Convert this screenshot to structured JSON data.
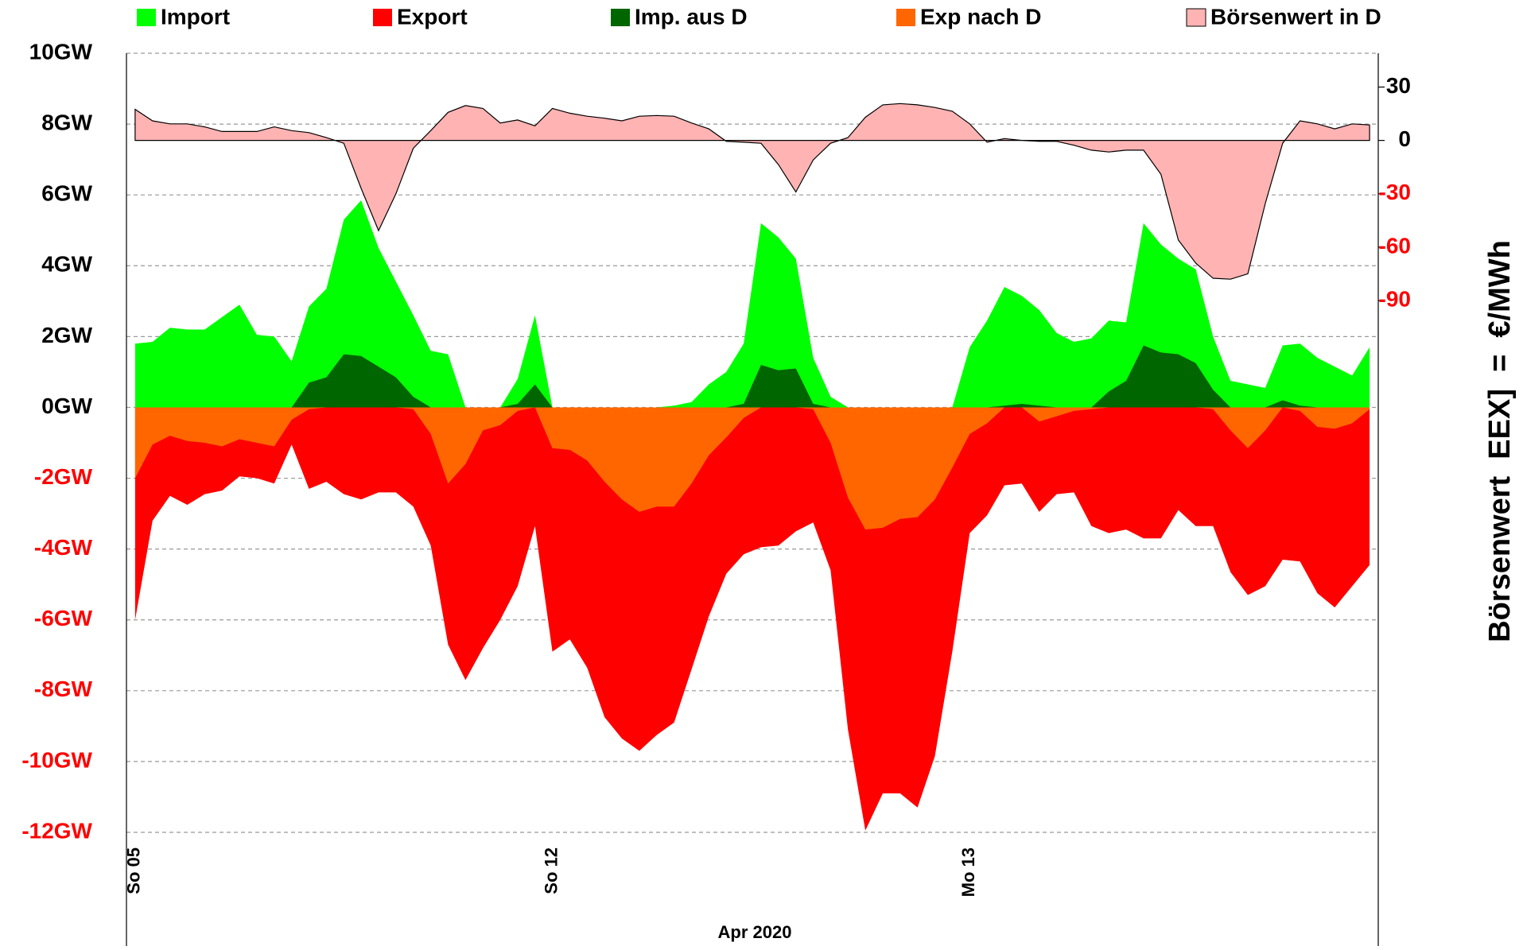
{
  "chart_data": {
    "type": "area",
    "xlabel": "Apr 2020",
    "y2label": "Börsenwert  EEX]  =  €/MWh",
    "categories": [
      "So 05",
      null,
      null,
      null,
      null,
      null,
      null,
      null,
      null,
      null,
      null,
      null,
      null,
      null,
      null,
      null,
      null,
      null,
      null,
      null,
      null,
      null,
      null,
      null,
      "So 12",
      null,
      null,
      null,
      null,
      null,
      null,
      null,
      null,
      null,
      null,
      null,
      null,
      null,
      null,
      null,
      null,
      null,
      null,
      null,
      null,
      null,
      null,
      null,
      "Mo 13",
      null,
      null,
      null,
      null,
      null,
      null,
      null,
      null,
      null,
      null,
      null,
      null,
      null,
      null,
      null,
      null,
      null,
      null,
      null,
      null,
      null,
      null,
      null
    ],
    "ylim": [
      -12,
      10
    ],
    "yticks": [
      {
        "value": 10,
        "label": "10GW"
      },
      {
        "value": 8,
        "label": "8GW"
      },
      {
        "value": 6,
        "label": "6GW"
      },
      {
        "value": 4,
        "label": "4GW"
      },
      {
        "value": 2,
        "label": "2GW"
      },
      {
        "value": 0,
        "label": "0GW"
      },
      {
        "value": -2,
        "label": "-2GW"
      },
      {
        "value": -4,
        "label": "-4GW"
      },
      {
        "value": -6,
        "label": "-6GW"
      },
      {
        "value": -8,
        "label": "-8GW"
      },
      {
        "value": -10,
        "label": "-10GW"
      },
      {
        "value": -12,
        "label": "-12GW"
      }
    ],
    "y2lim": [
      -389,
      49
    ],
    "y2ticks": [
      30,
      0,
      -30,
      -60,
      -90
    ],
    "grid": true,
    "legend": "top",
    "series": [
      {
        "name": "Import",
        "color": "#00ff00",
        "values": [
          1.8,
          1.85,
          2.25,
          2.2,
          2.2,
          2.55,
          2.9,
          2.05,
          2.0,
          1.3,
          2.85,
          3.35,
          5.3,
          5.85,
          4.5,
          3.55,
          2.6,
          1.6,
          1.5,
          0,
          0,
          0,
          0.8,
          2.6,
          0,
          0,
          0,
          0,
          0,
          0,
          0,
          0.05,
          0.15,
          0.65,
          1.0,
          1.8,
          5.2,
          4.8,
          4.2,
          1.4,
          0.3,
          0,
          0,
          0,
          0,
          0,
          0,
          0,
          1.7,
          2.45,
          3.4,
          3.15,
          2.75,
          2.1,
          1.85,
          1.95,
          2.45,
          2.4,
          5.2,
          4.6,
          4.2,
          3.9,
          2.0,
          0.75,
          0.65,
          0.55,
          1.75,
          1.8,
          1.4,
          1.15,
          0.9,
          1.7
        ]
      },
      {
        "name": "Export",
        "color": "#ff0000",
        "values": [
          -6.0,
          -3.2,
          -2.5,
          -2.75,
          -2.45,
          -2.35,
          -1.95,
          -2.0,
          -2.15,
          -1.05,
          -2.3,
          -2.1,
          -2.45,
          -2.6,
          -2.4,
          -2.4,
          -2.8,
          -3.9,
          -6.7,
          -7.7,
          -6.8,
          -6.0,
          -5.05,
          -3.35,
          -6.9,
          -6.55,
          -7.35,
          -8.75,
          -9.35,
          -9.7,
          -9.25,
          -8.9,
          -7.4,
          -5.9,
          -4.7,
          -4.15,
          -3.95,
          -3.9,
          -3.5,
          -3.25,
          -4.6,
          -9.1,
          -11.95,
          -10.9,
          -10.9,
          -11.3,
          -9.85,
          -6.9,
          -3.55,
          -3.05,
          -2.2,
          -2.15,
          -2.95,
          -2.45,
          -2.4,
          -3.35,
          -3.55,
          -3.45,
          -3.7,
          -3.7,
          -2.9,
          -3.35,
          -3.35,
          -4.65,
          -5.3,
          -5.05,
          -4.3,
          -4.35,
          -5.25,
          -5.65,
          -5.05,
          -4.45
        ]
      },
      {
        "name": "Imp. aus D",
        "color": "#006600",
        "values": [
          0,
          0,
          0,
          0,
          0,
          0,
          0,
          0,
          0,
          0,
          0.7,
          0.85,
          1.5,
          1.45,
          1.15,
          0.85,
          0.3,
          0,
          0,
          0,
          0,
          0,
          0.1,
          0.65,
          0,
          0,
          0,
          0,
          0,
          0,
          0,
          0,
          0,
          0,
          0,
          0.1,
          1.2,
          1.05,
          1.1,
          0.1,
          0,
          0,
          0,
          0,
          0,
          0,
          0,
          0,
          0,
          0,
          0.05,
          0.1,
          0.05,
          0,
          0,
          0,
          0.45,
          0.75,
          1.75,
          1.55,
          1.5,
          1.25,
          0.5,
          0,
          0,
          0,
          0.2,
          0.05,
          0,
          0,
          0,
          0
        ]
      },
      {
        "name": "Exp nach D",
        "color": "#ff6600",
        "values": [
          -2.0,
          -1.05,
          -0.8,
          -0.95,
          -1.0,
          -1.1,
          -0.9,
          -1.0,
          -1.1,
          -0.35,
          -0.05,
          0,
          0,
          0,
          0,
          0,
          -0.05,
          -0.75,
          -2.15,
          -1.6,
          -0.65,
          -0.5,
          -0.1,
          0,
          -1.15,
          -1.2,
          -1.5,
          -2.1,
          -2.6,
          -2.95,
          -2.8,
          -2.8,
          -2.15,
          -1.35,
          -0.85,
          -0.3,
          0,
          0,
          0,
          -0.05,
          -1.0,
          -2.55,
          -3.45,
          -3.4,
          -3.15,
          -3.1,
          -2.6,
          -1.7,
          -0.75,
          -0.45,
          0,
          0,
          -0.4,
          -0.25,
          -0.1,
          -0.05,
          0,
          0,
          0,
          0,
          0,
          0,
          -0.05,
          -0.65,
          -1.15,
          -0.65,
          0,
          -0.1,
          -0.55,
          -0.6,
          -0.45,
          -0.05
        ]
      },
      {
        "name": "Börsenwert in D",
        "color": "#ffb3b3",
        "axis": "y2",
        "values": [
          17.5,
          11,
          9.3,
          9.3,
          7.6,
          5,
          5,
          5,
          7.6,
          5.5,
          4.4,
          1.6,
          -1.6,
          -27,
          -50.7,
          -30,
          -4.4,
          5.5,
          15.8,
          19.6,
          18,
          9.8,
          11.5,
          8.2,
          18,
          15.3,
          13.6,
          12.5,
          11,
          13.6,
          14,
          13.6,
          9.8,
          6.5,
          -0.5,
          -1,
          -1.6,
          -13.6,
          -29,
          -11,
          -1.6,
          1.6,
          13,
          20,
          20.7,
          20,
          18.5,
          16.4,
          9.3,
          -1,
          1,
          0,
          -0.5,
          -0.5,
          -2.7,
          -5.5,
          -6.5,
          -5.5,
          -5.5,
          -19,
          -56,
          -69,
          -77.5,
          -78,
          -75,
          -35.5,
          -1.6,
          11,
          9.3,
          6.5,
          9.3,
          8.7
        ]
      }
    ]
  }
}
